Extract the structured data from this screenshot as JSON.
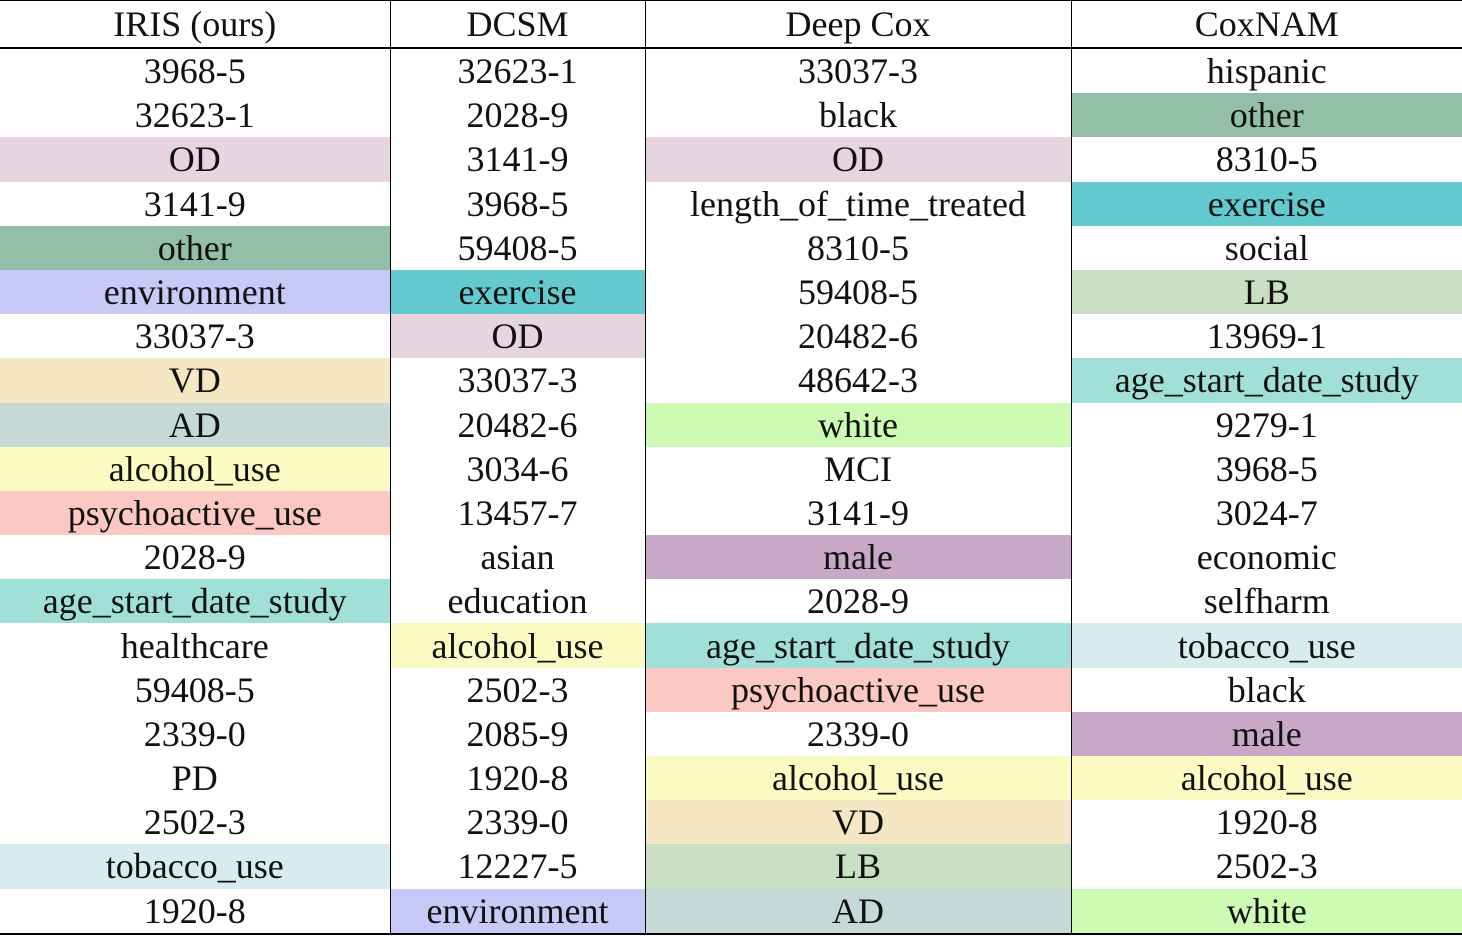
{
  "table": {
    "headers": [
      "IRIS (ours)",
      "DCSM",
      "Deep Cox",
      "CoxNAM"
    ],
    "palette": {
      "OD": "#e8d3e0",
      "other": "#93bfa8",
      "environment": "#c7c9f6",
      "exercise": "#62c9cf",
      "VD": "#f5e6c4",
      "AD": "#c6d9d9",
      "alcohol_use": "#fafac2",
      "psychoactive_use": "#fbc8c3",
      "age_start_date_study": "#a0e0d9",
      "tobacco_use": "#d6ecee",
      "LB": "#c8dfc4",
      "white": "#cdfbb4",
      "male": "#c9a8c7"
    },
    "columns": [
      [
        "3968-5",
        "32623-1",
        "OD",
        "3141-9",
        "other",
        "environment",
        "33037-3",
        "VD",
        "AD",
        "alcohol_use",
        "psychoactive_use",
        "2028-9",
        "age_start_date_study",
        "healthcare",
        "59408-5",
        "2339-0",
        "PD",
        "2502-3",
        "tobacco_use",
        "1920-8"
      ],
      [
        "32623-1",
        "2028-9",
        "3141-9",
        "3968-5",
        "59408-5",
        "exercise",
        "OD",
        "33037-3",
        "20482-6",
        "3034-6",
        "13457-7",
        "asian",
        "education",
        "alcohol_use",
        "2502-3",
        "2085-9",
        "1920-8",
        "2339-0",
        "12227-5",
        "environment"
      ],
      [
        "33037-3",
        "black",
        "OD",
        "length_of_time_treated",
        "8310-5",
        "59408-5",
        "20482-6",
        "48642-3",
        "white",
        "MCI",
        "3141-9",
        "male",
        "2028-9",
        "age_start_date_study",
        "psychoactive_use",
        "2339-0",
        "alcohol_use",
        "VD",
        "LB",
        "AD"
      ],
      [
        "hispanic",
        "other",
        "8310-5",
        "exercise",
        "social",
        "LB",
        "13969-1",
        "age_start_date_study",
        "9279-1",
        "3968-5",
        "3024-7",
        "economic",
        "selfharm",
        "tobacco_use",
        "black",
        "male",
        "alcohol_use",
        "1920-8",
        "2502-3",
        "white"
      ]
    ]
  }
}
